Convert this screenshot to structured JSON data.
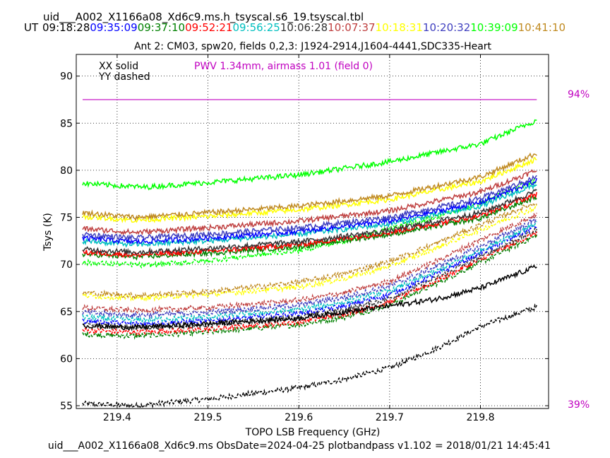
{
  "header": {
    "table_name": "uid___A002_X1166a08_Xd6c9.ms.h_tsyscal.s6_19.tsyscal.tbl",
    "ut_label": "UT",
    "times": [
      {
        "label": "09:18:28",
        "color": "#000000"
      },
      {
        "label": "09:35:09",
        "color": "#0000ff"
      },
      {
        "label": "09:37:10",
        "color": "#008000"
      },
      {
        "label": "09:52:21",
        "color": "#ff0000"
      },
      {
        "label": "09:56:25",
        "color": "#00bfbf"
      },
      {
        "label": "10:06:28",
        "color": "#333333"
      },
      {
        "label": "10:07:37",
        "color": "#bf3f3f"
      },
      {
        "label": "10:18:31",
        "color": "#ffff00"
      },
      {
        "label": "10:20:32",
        "color": "#3f3fbf"
      },
      {
        "label": "10:39:09",
        "color": "#00ff00"
      },
      {
        "label": "10:41:10",
        "color": "#c08a20"
      }
    ]
  },
  "chart_data": {
    "type": "line",
    "title": "Ant 2: CM03,  spw20,  fields 0,2,3: J1924-2914,J1604-4441,SDC335-Heart",
    "xlabel": "TOPO LSB Frequency (GHz)",
    "ylabel": "Tsys (K)",
    "xlim": [
      219.355,
      219.875
    ],
    "ylim": [
      54.7,
      92.3
    ],
    "xticks": [
      219.4,
      219.5,
      219.6,
      219.7,
      219.8
    ],
    "xtick_labels": [
      "219.4",
      "219.5",
      "219.6",
      "219.7",
      "219.8"
    ],
    "yticks": [
      55,
      60,
      65,
      70,
      75,
      80,
      85,
      90
    ],
    "ytick_labels": [
      "55",
      "60",
      "65",
      "70",
      "75",
      "80",
      "85",
      "90"
    ],
    "grid": true,
    "legend": {
      "solid": "XX solid",
      "dashed": "YY dashed",
      "placement": "top-left"
    },
    "annotation": {
      "text": "PWV 1.34mm, airmass 1.01 (field 0)",
      "color": "#c000c0"
    },
    "transmission": {
      "top_label": "94%",
      "bottom_label": "39%",
      "value_y": 87.5,
      "color": "#c000c0"
    },
    "x_range": [
      219.362,
      219.862
    ],
    "series": [
      {
        "time": "10:39:09",
        "pol": "XX",
        "color": "#00ff00",
        "points": [
          [
            219.362,
            78.6
          ],
          [
            219.43,
            78.2
          ],
          [
            219.5,
            78.7
          ],
          [
            219.6,
            79.5
          ],
          [
            219.7,
            80.9
          ],
          [
            219.8,
            82.8
          ],
          [
            219.862,
            85.3
          ]
        ]
      },
      {
        "time": "10:41:10",
        "pol": "XX",
        "color": "#c08a20",
        "points": [
          [
            219.362,
            75.5
          ],
          [
            219.42,
            75.0
          ],
          [
            219.5,
            75.5
          ],
          [
            219.6,
            76.2
          ],
          [
            219.7,
            77.3
          ],
          [
            219.8,
            79.3
          ],
          [
            219.862,
            81.8
          ]
        ]
      },
      {
        "time": "10:18:31",
        "pol": "XX",
        "color": "#ffff00",
        "points": [
          [
            219.362,
            75.1
          ],
          [
            219.42,
            74.7
          ],
          [
            219.5,
            75.1
          ],
          [
            219.6,
            75.8
          ],
          [
            219.7,
            76.9
          ],
          [
            219.8,
            78.8
          ],
          [
            219.862,
            81.2
          ]
        ]
      },
      {
        "time": "10:07:37",
        "pol": "XX",
        "color": "#bf3f3f",
        "points": [
          [
            219.362,
            73.8
          ],
          [
            219.42,
            73.4
          ],
          [
            219.5,
            73.9
          ],
          [
            219.6,
            74.6
          ],
          [
            219.7,
            75.7
          ],
          [
            219.8,
            77.7
          ],
          [
            219.862,
            80.0
          ]
        ]
      },
      {
        "time": "10:20:32",
        "pol": "XX",
        "color": "#3f3fbf",
        "points": [
          [
            219.362,
            73.2
          ],
          [
            219.42,
            72.8
          ],
          [
            219.5,
            73.2
          ],
          [
            219.6,
            73.9
          ],
          [
            219.7,
            75.0
          ],
          [
            219.8,
            77.0
          ],
          [
            219.862,
            79.3
          ]
        ]
      },
      {
        "time": "09:35:09",
        "pol": "XX",
        "color": "#0000ff",
        "points": [
          [
            219.362,
            72.8
          ],
          [
            219.42,
            72.4
          ],
          [
            219.5,
            72.8
          ],
          [
            219.6,
            73.5
          ],
          [
            219.7,
            74.6
          ],
          [
            219.8,
            76.6
          ],
          [
            219.862,
            78.9
          ]
        ]
      },
      {
        "time": "09:56:25",
        "pol": "XX",
        "color": "#00bfbf",
        "points": [
          [
            219.362,
            72.5
          ],
          [
            219.42,
            72.1
          ],
          [
            219.5,
            72.5
          ],
          [
            219.6,
            73.2
          ],
          [
            219.7,
            74.3
          ],
          [
            219.8,
            76.2
          ],
          [
            219.862,
            78.5
          ]
        ]
      },
      {
        "time": "10:06:28",
        "pol": "XX",
        "color": "#333333",
        "points": [
          [
            219.362,
            71.6
          ],
          [
            219.42,
            71.3
          ],
          [
            219.5,
            71.7
          ],
          [
            219.6,
            72.4
          ],
          [
            219.7,
            73.6
          ],
          [
            219.8,
            75.5
          ],
          [
            219.862,
            77.8
          ]
        ]
      },
      {
        "time": "09:52:21",
        "pol": "XX",
        "color": "#ff0000",
        "points": [
          [
            219.362,
            71.3
          ],
          [
            219.42,
            71.0
          ],
          [
            219.5,
            71.4
          ],
          [
            219.6,
            72.1
          ],
          [
            219.7,
            73.4
          ],
          [
            219.8,
            75.2
          ],
          [
            219.862,
            77.5
          ]
        ]
      },
      {
        "time": "09:37:10",
        "pol": "XX",
        "color": "#008000",
        "points": [
          [
            219.362,
            71.1
          ],
          [
            219.42,
            70.8
          ],
          [
            219.5,
            71.2
          ],
          [
            219.6,
            71.9
          ],
          [
            219.7,
            73.2
          ],
          [
            219.8,
            74.9
          ],
          [
            219.862,
            77.2
          ]
        ]
      },
      {
        "time": "09:18:28",
        "pol": "XX",
        "color": "#000000",
        "points": [
          [
            219.362,
            63.5
          ],
          [
            219.42,
            63.3
          ],
          [
            219.5,
            63.7
          ],
          [
            219.6,
            64.3
          ],
          [
            219.7,
            65.6
          ],
          [
            219.75,
            66.3
          ],
          [
            219.8,
            67.5
          ],
          [
            219.862,
            69.8
          ]
        ]
      },
      {
        "time": "10:39:09",
        "pol": "YY",
        "color": "#00ff00",
        "points": [
          [
            219.362,
            70.2
          ],
          [
            219.43,
            69.9
          ],
          [
            219.5,
            70.4
          ],
          [
            219.6,
            71.5
          ],
          [
            219.65,
            72.5
          ],
          [
            219.7,
            73.8
          ],
          [
            219.75,
            75.0
          ],
          [
            219.8,
            76.5
          ],
          [
            219.862,
            79.0
          ]
        ]
      },
      {
        "time": "10:41:10",
        "pol": "YY",
        "color": "#c08a20",
        "points": [
          [
            219.362,
            67.0
          ],
          [
            219.42,
            66.7
          ],
          [
            219.5,
            67.1
          ],
          [
            219.6,
            68.1
          ],
          [
            219.65,
            69.0
          ],
          [
            219.7,
            70.3
          ],
          [
            219.75,
            72.2
          ],
          [
            219.8,
            74.2
          ],
          [
            219.862,
            76.6
          ]
        ]
      },
      {
        "time": "10:18:31",
        "pol": "YY",
        "color": "#ffff00",
        "points": [
          [
            219.362,
            66.7
          ],
          [
            219.42,
            66.4
          ],
          [
            219.5,
            66.8
          ],
          [
            219.6,
            67.6
          ],
          [
            219.65,
            68.5
          ],
          [
            219.7,
            69.8
          ],
          [
            219.75,
            71.7
          ],
          [
            219.8,
            73.7
          ],
          [
            219.862,
            76.1
          ]
        ]
      },
      {
        "time": "10:07:37",
        "pol": "YY",
        "color": "#bf3f3f",
        "points": [
          [
            219.362,
            65.4
          ],
          [
            219.42,
            65.1
          ],
          [
            219.5,
            65.4
          ],
          [
            219.6,
            66.2
          ],
          [
            219.65,
            67.0
          ],
          [
            219.7,
            68.2
          ],
          [
            219.75,
            70.3
          ],
          [
            219.8,
            72.6
          ],
          [
            219.862,
            75.3
          ]
        ]
      },
      {
        "time": "10:20:32",
        "pol": "YY",
        "color": "#3f3fbf",
        "points": [
          [
            219.362,
            64.9
          ],
          [
            219.42,
            64.6
          ],
          [
            219.5,
            64.9
          ],
          [
            219.6,
            65.7
          ],
          [
            219.65,
            66.5
          ],
          [
            219.7,
            67.7
          ],
          [
            219.75,
            69.7
          ],
          [
            219.8,
            71.9
          ],
          [
            219.862,
            74.8
          ]
        ]
      },
      {
        "time": "09:56:25",
        "pol": "YY",
        "color": "#00bfbf",
        "points": [
          [
            219.362,
            64.4
          ],
          [
            219.42,
            64.1
          ],
          [
            219.5,
            64.4
          ],
          [
            219.6,
            65.2
          ],
          [
            219.65,
            66.0
          ],
          [
            219.7,
            67.2
          ],
          [
            219.75,
            69.2
          ],
          [
            219.8,
            71.5
          ],
          [
            219.862,
            74.4
          ]
        ]
      },
      {
        "time": "09:35:09",
        "pol": "YY",
        "color": "#0000ff",
        "points": [
          [
            219.362,
            64.0
          ],
          [
            219.42,
            63.7
          ],
          [
            219.5,
            64.0
          ],
          [
            219.6,
            64.8
          ],
          [
            219.65,
            65.6
          ],
          [
            219.7,
            66.8
          ],
          [
            219.75,
            68.9
          ],
          [
            219.8,
            71.2
          ],
          [
            219.862,
            74.1
          ]
        ]
      },
      {
        "time": "10:06:28",
        "pol": "YY",
        "color": "#333333",
        "points": [
          [
            219.362,
            63.6
          ],
          [
            219.42,
            63.3
          ],
          [
            219.5,
            63.6
          ],
          [
            219.6,
            64.4
          ],
          [
            219.65,
            65.2
          ],
          [
            219.7,
            66.4
          ],
          [
            219.75,
            68.5
          ],
          [
            219.8,
            70.8
          ],
          [
            219.862,
            73.7
          ]
        ]
      },
      {
        "time": "09:52:21",
        "pol": "YY",
        "color": "#ff0000",
        "points": [
          [
            219.362,
            63.0
          ],
          [
            219.42,
            62.8
          ],
          [
            219.5,
            63.1
          ],
          [
            219.6,
            63.9
          ],
          [
            219.65,
            64.7
          ],
          [
            219.7,
            66.0
          ],
          [
            219.75,
            68.2
          ],
          [
            219.8,
            70.5
          ],
          [
            219.862,
            73.4
          ]
        ]
      },
      {
        "time": "09:37:10",
        "pol": "YY",
        "color": "#008000",
        "points": [
          [
            219.362,
            62.6
          ],
          [
            219.42,
            62.4
          ],
          [
            219.5,
            62.8
          ],
          [
            219.6,
            63.6
          ],
          [
            219.65,
            64.4
          ],
          [
            219.7,
            65.7
          ],
          [
            219.75,
            67.9
          ],
          [
            219.8,
            70.2
          ],
          [
            219.862,
            73.1
          ]
        ]
      },
      {
        "time": "09:18:28",
        "pol": "YY",
        "color": "#000000",
        "points": [
          [
            219.362,
            55.2
          ],
          [
            219.42,
            55.0
          ],
          [
            219.5,
            55.7
          ],
          [
            219.6,
            56.9
          ],
          [
            219.65,
            57.8
          ],
          [
            219.7,
            59.0
          ],
          [
            219.75,
            61.0
          ],
          [
            219.8,
            63.4
          ],
          [
            219.862,
            65.5
          ]
        ]
      }
    ]
  },
  "footer": {
    "text": "uid___A002_X1166a08_Xd6c9.ms  ObsDate=2024-04-25   plotbandpass v1.102 = 2018/01/21 14:45:41"
  }
}
